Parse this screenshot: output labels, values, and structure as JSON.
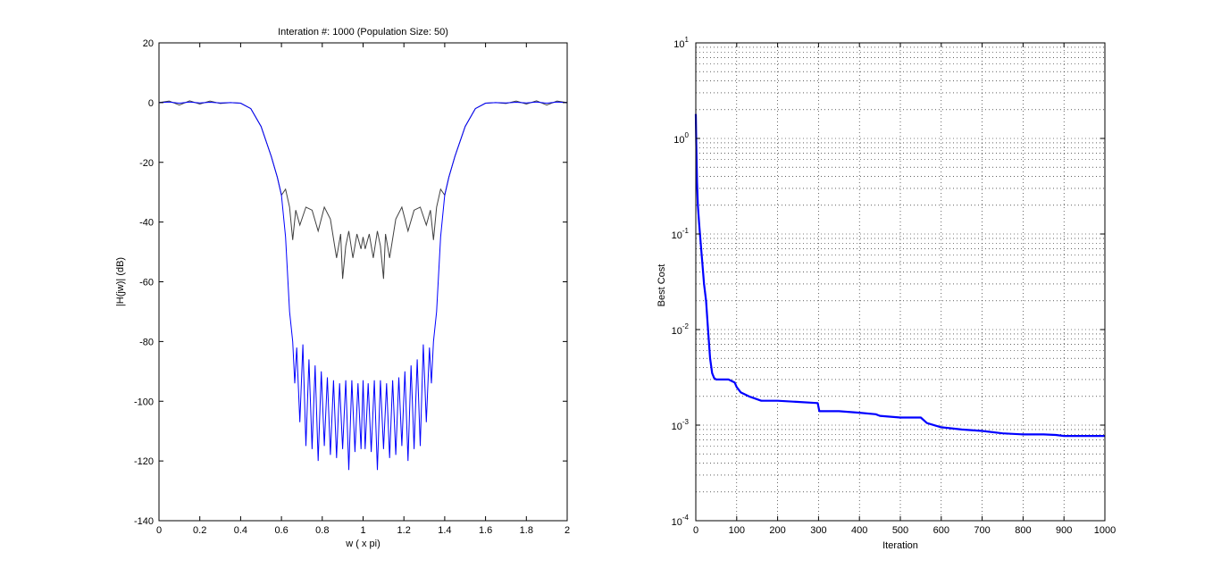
{
  "chart_data": [
    {
      "type": "line",
      "title": "Interation #: 1000 (Population Size: 50)",
      "xlabel": "w ( x pi)",
      "ylabel": "|H(jw)| (dB)",
      "xlim": [
        0,
        2
      ],
      "ylim": [
        -140,
        20
      ],
      "xticks": [
        0,
        0.2,
        0.4,
        0.6,
        0.8,
        1,
        1.2,
        1.4,
        1.6,
        1.8,
        2
      ],
      "xtick_labels": [
        "0",
        "0.2",
        "0.4",
        "0.6",
        "0.8",
        "1",
        "1.2",
        "1.4",
        "1.6",
        "1.8",
        "2"
      ],
      "yticks": [
        20,
        0,
        -20,
        -40,
        -60,
        -80,
        -100,
        -120,
        -140
      ],
      "ytick_labels": [
        "20",
        "0",
        "-20",
        "-40",
        "-60",
        "-80",
        "-100",
        "-120",
        "-140"
      ],
      "grid": false,
      "series": [
        {
          "color": "#404040",
          "x": [
            0,
            0.05,
            0.1,
            0.15,
            0.2,
            0.25,
            0.3,
            0.35,
            0.4,
            0.45,
            0.5,
            0.55,
            0.58,
            0.6,
            0.62,
            0.64,
            0.655,
            0.67,
            0.69,
            0.72,
            0.75,
            0.78,
            0.81,
            0.84,
            0.87,
            0.89,
            0.9,
            0.915,
            0.93,
            0.95,
            0.97,
            0.99,
            1.0,
            1.01,
            1.03,
            1.05,
            1.07,
            1.085,
            1.1,
            1.11,
            1.13,
            1.16,
            1.19,
            1.22,
            1.25,
            1.28,
            1.31,
            1.33,
            1.345,
            1.36,
            1.38,
            1.4,
            1.42,
            1.45,
            1.5,
            1.55,
            1.6,
            1.65,
            1.7,
            1.75,
            1.8,
            1.85,
            1.9,
            1.95,
            2.0
          ],
          "y": [
            0,
            0.5,
            -0.8,
            0.6,
            -0.5,
            0.5,
            -0.3,
            0,
            -0.2,
            -2,
            -8,
            -18,
            -25,
            -31,
            -29,
            -35,
            -46,
            -36,
            -41,
            -35,
            -36,
            -43,
            -35,
            -39,
            -52,
            -44,
            -59,
            -48,
            -43,
            -52,
            -44,
            -49,
            -45,
            -49,
            -44,
            -52,
            -43,
            -48,
            -59,
            -44,
            -52,
            -39,
            -35,
            -43,
            -36,
            -35,
            -41,
            -36,
            -46,
            -35,
            -29,
            -31,
            -25,
            -18,
            -8,
            -2,
            -0.2,
            0,
            -0.3,
            0.5,
            -0.5,
            0.6,
            -0.8,
            0.5,
            0
          ]
        },
        {
          "color": "#0000ff",
          "x": [
            0,
            0.05,
            0.1,
            0.15,
            0.2,
            0.25,
            0.3,
            0.35,
            0.4,
            0.45,
            0.5,
            0.55,
            0.58,
            0.6,
            0.62,
            0.64,
            0.655,
            0.665,
            0.675,
            0.69,
            0.705,
            0.72,
            0.735,
            0.75,
            0.765,
            0.78,
            0.795,
            0.81,
            0.825,
            0.84,
            0.855,
            0.87,
            0.885,
            0.9,
            0.915,
            0.93,
            0.945,
            0.96,
            0.975,
            0.99,
            1.0,
            1.01,
            1.025,
            1.04,
            1.055,
            1.07,
            1.085,
            1.1,
            1.115,
            1.13,
            1.145,
            1.16,
            1.175,
            1.19,
            1.205,
            1.22,
            1.235,
            1.25,
            1.265,
            1.28,
            1.295,
            1.31,
            1.325,
            1.335,
            1.345,
            1.36,
            1.38,
            1.4,
            1.42,
            1.45,
            1.5,
            1.55,
            1.6,
            1.65,
            1.7,
            1.75,
            1.8,
            1.85,
            1.9,
            1.95,
            2.0
          ],
          "y": [
            0,
            0.2,
            -0.2,
            0.2,
            -0.1,
            0.1,
            -0.1,
            0,
            -0.2,
            -2,
            -8,
            -18,
            -25,
            -31,
            -45,
            -70,
            -80,
            -94,
            -82,
            -107,
            -81,
            -115,
            -86,
            -116,
            -88,
            -120,
            -90,
            -115,
            -92,
            -118,
            -93,
            -119,
            -94,
            -116,
            -93,
            -123,
            -93,
            -117,
            -94,
            -116,
            -93,
            -116,
            -94,
            -117,
            -93,
            -123,
            -93,
            -116,
            -94,
            -119,
            -93,
            -118,
            -92,
            -115,
            -90,
            -120,
            -88,
            -116,
            -86,
            -115,
            -81,
            -107,
            -82,
            -94,
            -80,
            -70,
            -45,
            -31,
            -25,
            -18,
            -8,
            -2,
            -0.2,
            0,
            -0.1,
            0.1,
            -0.1,
            0.2,
            -0.2,
            0.2,
            0
          ]
        }
      ]
    },
    {
      "type": "line",
      "title": "",
      "xlabel": "Iteration",
      "ylabel": "Best Cost",
      "xlim": [
        0,
        1000
      ],
      "ylim": [
        0.0001,
        10
      ],
      "yscale": "log",
      "xticks": [
        0,
        100,
        200,
        300,
        400,
        500,
        600,
        700,
        800,
        900,
        1000
      ],
      "xtick_labels": [
        "0",
        "100",
        "200",
        "300",
        "400",
        "500",
        "600",
        "700",
        "800",
        "900",
        "1000"
      ],
      "ytick_labels": [
        {
          "base": "10",
          "exp": "1"
        },
        {
          "base": "10",
          "exp": "0"
        },
        {
          "base": "10",
          "exp": "-1"
        },
        {
          "base": "10",
          "exp": "-2"
        },
        {
          "base": "10",
          "exp": "-3"
        },
        {
          "base": "10",
          "exp": "-4"
        }
      ],
      "grid": true,
      "series": [
        {
          "color": "#0000ff",
          "x": [
            0,
            1,
            3,
            5,
            8,
            12,
            16,
            20,
            25,
            30,
            35,
            40,
            45,
            50,
            60,
            80,
            95,
            100,
            110,
            130,
            160,
            200,
            250,
            298,
            302,
            320,
            350,
            400,
            440,
            450,
            500,
            550,
            565,
            600,
            650,
            700,
            750,
            800,
            850,
            880,
            900,
            950,
            1000
          ],
          "y": [
            1.8,
            0.9,
            0.35,
            0.2,
            0.13,
            0.08,
            0.05,
            0.03,
            0.02,
            0.01,
            0.005,
            0.0035,
            0.0031,
            0.003,
            0.003,
            0.003,
            0.0028,
            0.0025,
            0.0022,
            0.002,
            0.0018,
            0.0018,
            0.00175,
            0.0017,
            0.0014,
            0.0014,
            0.0014,
            0.00135,
            0.0013,
            0.00125,
            0.0012,
            0.0012,
            0.00105,
            0.00095,
            0.0009,
            0.00087,
            0.00082,
            0.0008,
            0.0008,
            0.00079,
            0.00077,
            0.00077,
            0.00077
          ]
        }
      ]
    }
  ]
}
